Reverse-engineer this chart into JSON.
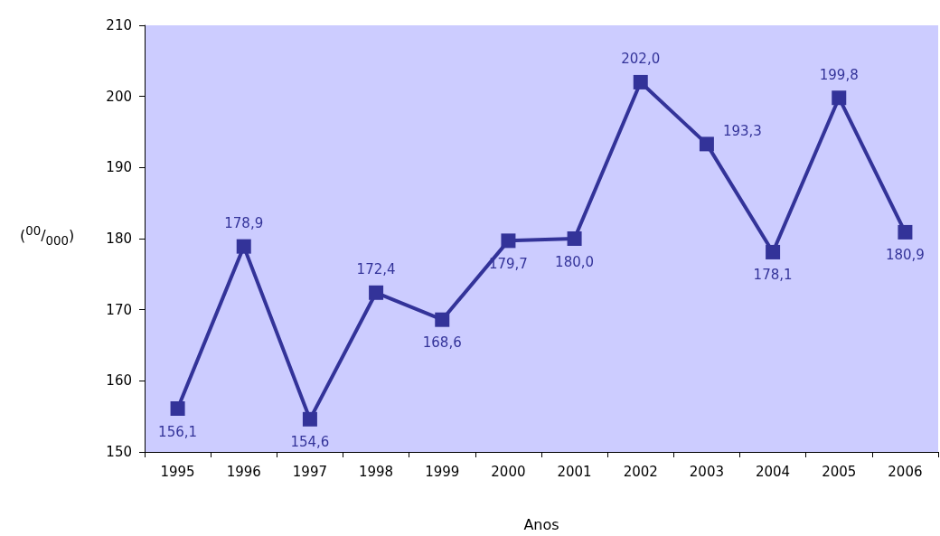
{
  "chart_data": {
    "type": "line",
    "xlabel": "Anos",
    "ylabel": "($^{00}$/$_{000}$)",
    "categories": [
      "1995",
      "1996",
      "1997",
      "1998",
      "1999",
      "2000",
      "2001",
      "2002",
      "2003",
      "2004",
      "2005",
      "2006"
    ],
    "series": [
      {
        "color": "#333399",
        "values": [
          156.1,
          178.9,
          154.6,
          172.4,
          168.6,
          179.7,
          180.0,
          202.0,
          193.3,
          178.1,
          199.8,
          180.9
        ],
        "value_labels": [
          "156,1",
          "178,9",
          "154,6",
          "172,4",
          "168,6",
          "179,7",
          "180,0",
          "202,0",
          "193,3",
          "178,1",
          "199,8",
          "180,9"
        ]
      }
    ],
    "ylim": [
      150,
      210
    ],
    "yticks": [
      150,
      160,
      170,
      180,
      190,
      200,
      210
    ],
    "grid": false,
    "marker": "square",
    "line_style": "solid"
  }
}
